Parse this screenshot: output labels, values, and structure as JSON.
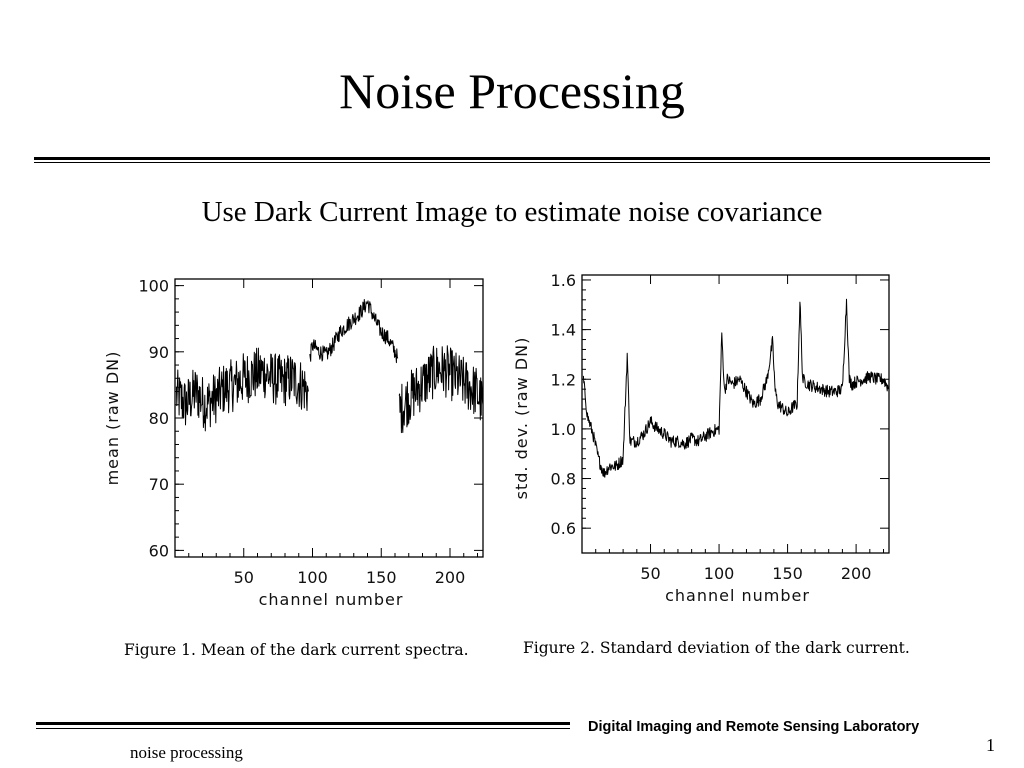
{
  "slide": {
    "title": "Noise Processing",
    "subtitle": "Use Dark Current Image to estimate noise covariance",
    "footer_lab": "Digital Imaging and Remote Sensing Laboratory",
    "footer_left": "noise processing",
    "page_number": "1"
  },
  "chart_data": [
    {
      "type": "line",
      "caption": "Figure 1.  Mean of the dark current spectra.",
      "xlabel": "channel number",
      "ylabel": "mean (raw DN)",
      "xlim": [
        0,
        224
      ],
      "ylim": [
        59,
        101
      ],
      "xticks": [
        50,
        100,
        150,
        200
      ],
      "yticks": [
        60,
        70,
        80,
        90,
        100
      ],
      "grid": false,
      "segments": [
        {
          "x": [
            1,
            8,
            15,
            22,
            29,
            36,
            43,
            50,
            57,
            64,
            71,
            78,
            85,
            92,
            97
          ],
          "y": [
            83.5,
            82.0,
            84.0,
            82.0,
            83.0,
            84.5,
            85.0,
            86.0,
            86.5,
            87.0,
            86.0,
            85.5,
            86.0,
            85.0,
            84.0
          ],
          "noise_amplitude": 4
        },
        {
          "x": [
            98,
            100,
            105,
            110,
            115,
            120,
            125,
            130,
            135,
            140,
            145,
            150,
            155,
            160,
            162
          ],
          "y": [
            89.0,
            91.0,
            90.0,
            89.5,
            91.0,
            93.0,
            94.0,
            95.0,
            96.0,
            97.5,
            95.0,
            93.0,
            92.0,
            90.0,
            89.0
          ],
          "noise_amplitude": 1.2
        },
        {
          "x": [
            163,
            170,
            177,
            184,
            191,
            198,
            205,
            212,
            219,
            224
          ],
          "y": [
            81.0,
            83.0,
            84.5,
            86.0,
            87.5,
            87.0,
            86.0,
            85.0,
            84.0,
            82.0
          ],
          "noise_amplitude": 4
        }
      ]
    },
    {
      "type": "line",
      "caption": "Figure 2.  Standard deviation of the dark current.",
      "xlabel": "channel number",
      "ylabel": "std. dev.  (raw DN)",
      "xlim": [
        0,
        224
      ],
      "ylim": [
        0.5,
        1.62
      ],
      "xticks": [
        50,
        100,
        150,
        200
      ],
      "yticks": [
        0.6,
        0.8,
        1.0,
        1.2,
        1.4,
        1.6
      ],
      "grid": false,
      "segments": [
        {
          "x": [
            1,
            4,
            8,
            12,
            16,
            20,
            25,
            30,
            33,
            35,
            37,
            40,
            45,
            50,
            55,
            60,
            65,
            70,
            75,
            80,
            85,
            90,
            95,
            100,
            102,
            104,
            106,
            110,
            115,
            120,
            125,
            130,
            135,
            139,
            141,
            143,
            147,
            150,
            154,
            157,
            159,
            161,
            165,
            170,
            175,
            180,
            185,
            190,
            193,
            195,
            197,
            200,
            205,
            210,
            215,
            220,
            224
          ],
          "y": [
            1.2,
            1.05,
            0.98,
            0.88,
            0.82,
            0.85,
            0.85,
            0.88,
            1.3,
            0.95,
            0.95,
            0.95,
            0.98,
            1.03,
            1.0,
            0.98,
            0.95,
            0.95,
            0.94,
            0.96,
            0.95,
            0.97,
            0.99,
            1.0,
            1.38,
            1.15,
            1.2,
            1.18,
            1.2,
            1.15,
            1.1,
            1.12,
            1.2,
            1.35,
            1.15,
            1.1,
            1.08,
            1.06,
            1.09,
            1.1,
            1.52,
            1.2,
            1.18,
            1.17,
            1.16,
            1.15,
            1.15,
            1.16,
            1.52,
            1.2,
            1.18,
            1.19,
            1.2,
            1.21,
            1.2,
            1.2,
            1.16
          ],
          "noise_amplitude": 0.025
        }
      ]
    }
  ]
}
